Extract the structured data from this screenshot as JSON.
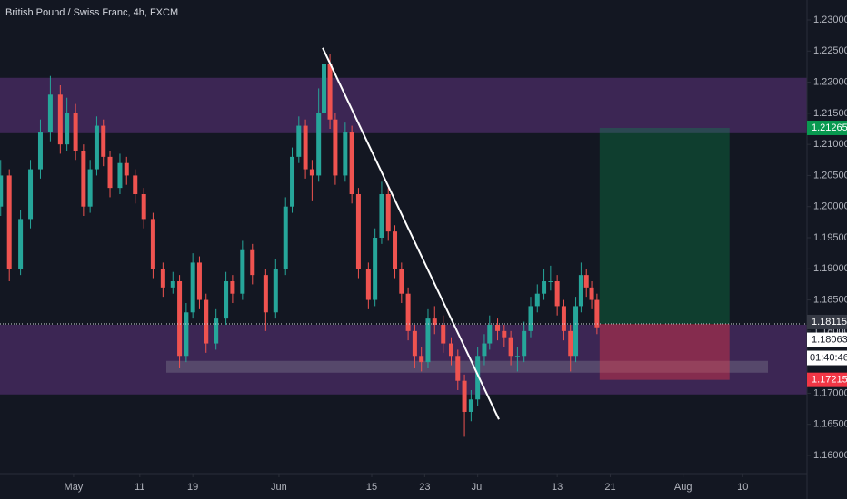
{
  "chart_data": {
    "type": "candlestick",
    "title": "British Pound / Swiss Franc, 4h, FXCM",
    "up_color": "#26a69a",
    "down_color": "#ef5350",
    "xlim": [
      110.9,
      232.7
    ],
    "xticks": [
      {
        "value": 122,
        "label": "May"
      },
      {
        "value": 132,
        "label": "11"
      },
      {
        "value": 140,
        "label": "19"
      },
      {
        "value": 153,
        "label": "Jun"
      },
      {
        "value": 167,
        "label": "15"
      },
      {
        "value": 175,
        "label": "23"
      },
      {
        "value": 183,
        "label": "Jul"
      },
      {
        "value": 195,
        "label": "13"
      },
      {
        "value": 203,
        "label": "21"
      },
      {
        "value": 214,
        "label": "Aug"
      },
      {
        "value": 223,
        "label": "10"
      }
    ],
    "ylim": [
      1.15708,
      1.23321
    ],
    "yticks": [
      {
        "value": 1.16,
        "label": "1.16000"
      },
      {
        "value": 1.165,
        "label": "1.16500"
      },
      {
        "value": 1.17,
        "label": "1.17000"
      },
      {
        "value": 1.175,
        "label": "1.17500"
      },
      {
        "value": 1.18,
        "label": "1.18000"
      },
      {
        "value": 1.185,
        "label": "1.18500"
      },
      {
        "value": 1.19,
        "label": "1.19000"
      },
      {
        "value": 1.195,
        "label": "1.19500"
      },
      {
        "value": 1.2,
        "label": "1.20000"
      },
      {
        "value": 1.205,
        "label": "1.20500"
      },
      {
        "value": 1.21,
        "label": "1.21000"
      },
      {
        "value": 1.215,
        "label": "1.21500"
      },
      {
        "value": 1.22,
        "label": "1.22000"
      },
      {
        "value": 1.225,
        "label": "1.22500"
      },
      {
        "value": 1.23,
        "label": "1.23000"
      }
    ],
    "x": [
      111,
      112.3,
      114,
      115.5,
      117,
      118.5,
      120,
      121,
      122.3,
      123.5,
      124.5,
      125.5,
      126.5,
      127.5,
      129,
      130,
      131.3,
      132.6,
      134,
      135.5,
      137,
      138,
      139,
      140,
      141,
      142,
      143.5,
      145,
      146,
      147.5,
      149,
      151,
      152.5,
      154,
      155,
      156,
      157,
      158,
      159,
      159.8,
      160.7,
      161.5,
      163,
      164,
      165,
      166.5,
      167.5,
      168.5,
      169.5,
      170.5,
      171.5,
      172.5,
      173.5,
      174.5,
      175.5,
      176.5,
      177.8,
      179,
      180,
      181,
      182,
      183,
      184,
      184.8,
      186,
      187,
      188,
      189,
      190,
      191,
      192,
      193,
      194,
      195,
      196,
      197,
      197.8,
      198.6,
      199.4,
      200.2,
      201
    ],
    "open": [
      1.2,
      1.205,
      1.19,
      1.198,
      1.206,
      1.212,
      1.218,
      1.21,
      1.215,
      1.209,
      1.2,
      1.206,
      1.213,
      1.208,
      1.203,
      1.207,
      1.205,
      1.202,
      1.198,
      1.19,
      1.187,
      1.188,
      1.176,
      1.183,
      1.191,
      1.185,
      1.178,
      1.182,
      1.188,
      1.186,
      1.193,
      1.189,
      1.183,
      1.19,
      1.2,
      1.208,
      1.213,
      1.206,
      1.205,
      1.215,
      1.223,
      1.214,
      1.205,
      1.212,
      1.202,
      1.19,
      1.185,
      1.195,
      1.202,
      1.196,
      1.19,
      1.186,
      1.18,
      1.176,
      1.175,
      1.182,
      1.181,
      1.178,
      1.176,
      1.172,
      1.167,
      1.169,
      1.176,
      1.178,
      1.181,
      1.18,
      1.179,
      1.176,
      1.176,
      1.18,
      1.184,
      1.186,
      1.188,
      1.188,
      1.184,
      1.18,
      1.176,
      1.184,
      1.189,
      1.187,
      1.185
    ],
    "high": [
      1.2075,
      1.206,
      1.1995,
      1.2075,
      1.214,
      1.221,
      1.2195,
      1.2175,
      1.2165,
      1.21,
      1.2075,
      1.2145,
      1.214,
      1.209,
      1.2085,
      1.208,
      1.206,
      1.203,
      1.199,
      1.191,
      1.1895,
      1.189,
      1.1845,
      1.1925,
      1.192,
      1.186,
      1.1835,
      1.1895,
      1.189,
      1.1945,
      1.194,
      1.19,
      1.1915,
      1.2015,
      1.2095,
      1.2145,
      1.214,
      1.2075,
      1.219,
      1.226,
      1.2245,
      1.215,
      1.2135,
      1.213,
      1.203,
      1.191,
      1.1965,
      1.204,
      1.203,
      1.197,
      1.191,
      1.187,
      1.181,
      1.1775,
      1.1835,
      1.184,
      1.1825,
      1.179,
      1.177,
      1.173,
      1.1705,
      1.1775,
      1.1795,
      1.1825,
      1.182,
      1.181,
      1.18,
      1.1775,
      1.1815,
      1.1855,
      1.1875,
      1.19,
      1.1905,
      1.189,
      1.185,
      1.181,
      1.1855,
      1.191,
      1.19,
      1.188,
      1.186
    ],
    "low": [
      1.1985,
      1.188,
      1.189,
      1.1965,
      1.2045,
      1.2105,
      1.2085,
      1.209,
      1.2075,
      1.1985,
      1.199,
      1.205,
      1.2065,
      1.2015,
      1.202,
      1.2035,
      1.2005,
      1.1965,
      1.1885,
      1.1855,
      1.186,
      1.174,
      1.175,
      1.182,
      1.1835,
      1.1765,
      1.177,
      1.181,
      1.1845,
      1.185,
      1.1875,
      1.18,
      1.182,
      1.189,
      1.199,
      1.207,
      1.2045,
      1.201,
      1.204,
      1.214,
      1.2125,
      1.2035,
      1.204,
      1.2005,
      1.1885,
      1.1835,
      1.184,
      1.194,
      1.1945,
      1.1885,
      1.1845,
      1.1785,
      1.174,
      1.1735,
      1.174,
      1.1795,
      1.1765,
      1.1745,
      1.1705,
      1.163,
      1.1655,
      1.168,
      1.1745,
      1.177,
      1.1785,
      1.1775,
      1.1745,
      1.1735,
      1.175,
      1.179,
      1.183,
      1.185,
      1.1865,
      1.1825,
      1.1785,
      1.1735,
      1.175,
      1.183,
      1.1855,
      1.1835,
      1.1795
    ],
    "close": [
      1.205,
      1.19,
      1.198,
      1.206,
      1.212,
      1.218,
      1.21,
      1.215,
      1.209,
      1.2,
      1.206,
      1.213,
      1.208,
      1.203,
      1.207,
      1.205,
      1.202,
      1.198,
      1.19,
      1.187,
      1.188,
      1.176,
      1.183,
      1.191,
      1.185,
      1.178,
      1.182,
      1.188,
      1.186,
      1.193,
      1.189,
      1.183,
      1.19,
      1.2,
      1.208,
      1.213,
      1.206,
      1.205,
      1.215,
      1.223,
      1.214,
      1.205,
      1.212,
      1.202,
      1.19,
      1.185,
      1.195,
      1.202,
      1.196,
      1.19,
      1.186,
      1.18,
      1.176,
      1.175,
      1.182,
      1.181,
      1.178,
      1.176,
      1.172,
      1.167,
      1.169,
      1.176,
      1.178,
      1.181,
      1.18,
      1.179,
      1.176,
      1.176,
      1.18,
      1.184,
      1.186,
      1.188,
      1.188,
      1.184,
      1.18,
      1.176,
      1.184,
      1.189,
      1.187,
      1.185,
      1.1806
    ],
    "zones": [
      {
        "ylim": [
          1.2118,
          1.2207
        ],
        "color": "#7b3fa0"
      },
      {
        "ylim": [
          1.1698,
          1.181
        ],
        "color": "#7b3fa0"
      }
    ],
    "band": {
      "xlim": [
        136,
        226.8
      ],
      "ylim": [
        1.1733,
        1.1752
      ],
      "color": "#9598a1"
    },
    "trendline": {
      "x": [
        159.6,
        186.2
      ],
      "y": [
        1.2255,
        1.1658
      ],
      "color": "#ffffff"
    },
    "position": {
      "xlim": [
        201.4,
        221
      ],
      "entry": {
        "value": 1.18115,
        "label": "1.18115",
        "color": "#363a45"
      },
      "target": {
        "value": 1.21265,
        "label": "1.21265",
        "color": "#089950"
      },
      "stop": {
        "value": 1.17215,
        "label": "1.17215",
        "color": "#f23645"
      }
    },
    "last_price": {
      "value": 1.18063,
      "label": "1.18063",
      "countdown": "01:40:46"
    }
  }
}
